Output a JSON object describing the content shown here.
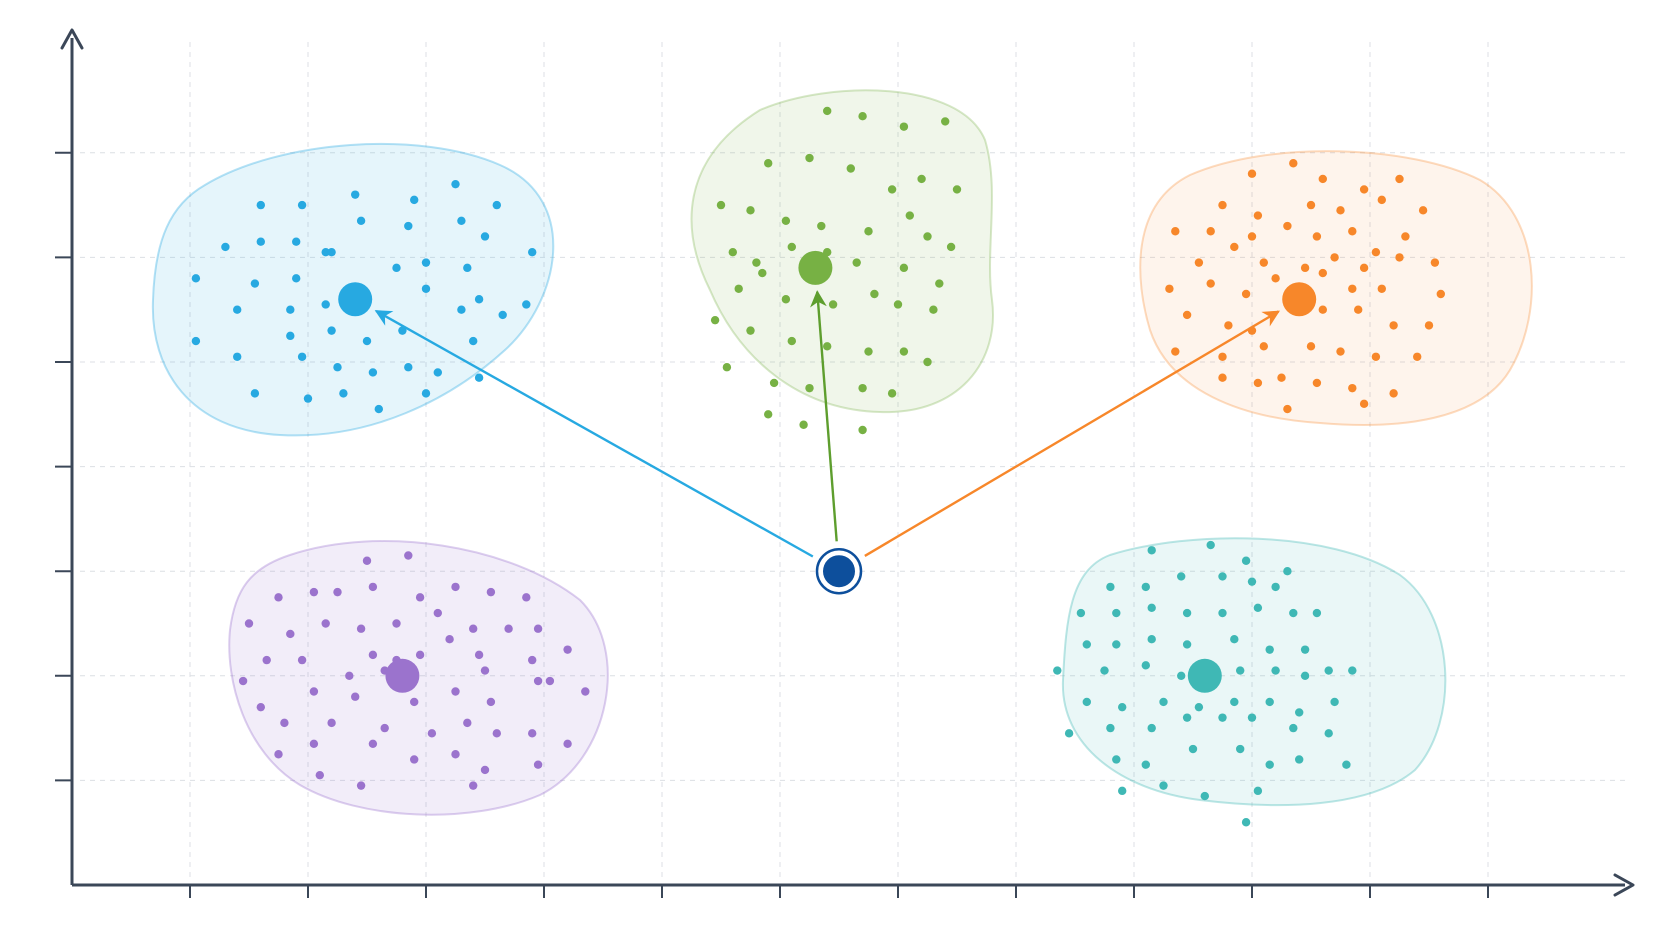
{
  "chart_data": {
    "type": "scatter",
    "title": "",
    "xlabel": "",
    "ylabel": "",
    "xlim": [
      0,
      13
    ],
    "ylim": [
      0,
      8
    ],
    "grid": true,
    "colors": {
      "axis": "#3b4758",
      "grid": "#dcdfe4",
      "query": "#0d4f9c"
    },
    "query_point": {
      "x": 6.5,
      "y": 3.0
    },
    "arrows_to": [
      "blue",
      "green",
      "orange"
    ],
    "clusters": [
      {
        "id": "blue",
        "color": "#27a9e1",
        "centroid": {
          "x": 2.4,
          "y": 5.6
        },
        "points": [
          [
            1.6,
            6.5
          ],
          [
            1.95,
            6.5
          ],
          [
            2.4,
            6.6
          ],
          [
            2.9,
            6.55
          ],
          [
            3.25,
            6.7
          ],
          [
            3.6,
            6.5
          ],
          [
            1.3,
            6.1
          ],
          [
            1.6,
            6.15
          ],
          [
            1.9,
            6.15
          ],
          [
            2.15,
            6.05
          ],
          [
            2.45,
            6.35
          ],
          [
            2.85,
            6.3
          ],
          [
            3.3,
            6.35
          ],
          [
            3.5,
            6.2
          ],
          [
            3.9,
            6.05
          ],
          [
            1.05,
            5.8
          ],
          [
            1.55,
            5.75
          ],
          [
            1.9,
            5.8
          ],
          [
            2.2,
            6.05
          ],
          [
            2.75,
            5.9
          ],
          [
            3.0,
            5.95
          ],
          [
            3.35,
            5.9
          ],
          [
            3.45,
            5.6
          ],
          [
            3.65,
            5.45
          ],
          [
            1.4,
            5.5
          ],
          [
            1.85,
            5.5
          ],
          [
            2.15,
            5.55
          ],
          [
            3.0,
            5.7
          ],
          [
            3.3,
            5.5
          ],
          [
            3.85,
            5.55
          ],
          [
            1.05,
            5.2
          ],
          [
            1.4,
            5.05
          ],
          [
            1.85,
            5.25
          ],
          [
            2.2,
            5.3
          ],
          [
            2.5,
            5.2
          ],
          [
            2.8,
            5.3
          ],
          [
            3.4,
            5.2
          ],
          [
            1.95,
            5.05
          ],
          [
            2.25,
            4.95
          ],
          [
            2.55,
            4.9
          ],
          [
            2.85,
            4.95
          ],
          [
            3.1,
            4.9
          ],
          [
            3.45,
            4.85
          ],
          [
            1.55,
            4.7
          ],
          [
            2.0,
            4.65
          ],
          [
            2.3,
            4.7
          ],
          [
            2.6,
            4.55
          ],
          [
            3.0,
            4.7
          ]
        ]
      },
      {
        "id": "green",
        "color": "#77b144",
        "centroid": {
          "x": 6.3,
          "y": 5.9
        },
        "points": [
          [
            6.4,
            7.4
          ],
          [
            6.7,
            7.35
          ],
          [
            7.05,
            7.25
          ],
          [
            7.4,
            7.3
          ],
          [
            5.9,
            6.9
          ],
          [
            6.25,
            6.95
          ],
          [
            6.6,
            6.85
          ],
          [
            6.95,
            6.65
          ],
          [
            7.2,
            6.75
          ],
          [
            7.5,
            6.65
          ],
          [
            5.5,
            6.5
          ],
          [
            5.75,
            6.45
          ],
          [
            6.05,
            6.35
          ],
          [
            6.35,
            6.3
          ],
          [
            6.75,
            6.25
          ],
          [
            7.1,
            6.4
          ],
          [
            7.25,
            6.2
          ],
          [
            7.45,
            6.1
          ],
          [
            5.6,
            6.05
          ],
          [
            5.8,
            5.95
          ],
          [
            6.1,
            6.1
          ],
          [
            6.4,
            6.05
          ],
          [
            6.65,
            5.95
          ],
          [
            7.05,
            5.9
          ],
          [
            7.35,
            5.75
          ],
          [
            5.65,
            5.7
          ],
          [
            5.85,
            5.85
          ],
          [
            6.05,
            5.6
          ],
          [
            6.45,
            5.55
          ],
          [
            6.8,
            5.65
          ],
          [
            7.0,
            5.55
          ],
          [
            7.3,
            5.5
          ],
          [
            5.45,
            5.4
          ],
          [
            5.75,
            5.3
          ],
          [
            6.1,
            5.2
          ],
          [
            6.4,
            5.15
          ],
          [
            6.75,
            5.1
          ],
          [
            7.05,
            5.1
          ],
          [
            7.25,
            5.0
          ],
          [
            5.55,
            4.95
          ],
          [
            5.95,
            4.8
          ],
          [
            6.25,
            4.75
          ],
          [
            6.7,
            4.75
          ],
          [
            6.95,
            4.7
          ],
          [
            5.9,
            4.5
          ],
          [
            6.2,
            4.4
          ],
          [
            6.7,
            4.35
          ]
        ]
      },
      {
        "id": "orange",
        "color": "#f7872a",
        "centroid": {
          "x": 10.4,
          "y": 5.6
        },
        "points": [
          [
            10.0,
            6.8
          ],
          [
            10.35,
            6.9
          ],
          [
            10.6,
            6.75
          ],
          [
            10.95,
            6.65
          ],
          [
            11.25,
            6.75
          ],
          [
            9.75,
            6.5
          ],
          [
            10.05,
            6.4
          ],
          [
            10.5,
            6.5
          ],
          [
            10.75,
            6.45
          ],
          [
            11.1,
            6.55
          ],
          [
            11.45,
            6.45
          ],
          [
            9.35,
            6.25
          ],
          [
            9.65,
            6.25
          ],
          [
            10.0,
            6.2
          ],
          [
            10.3,
            6.3
          ],
          [
            10.55,
            6.2
          ],
          [
            10.85,
            6.25
          ],
          [
            11.05,
            6.05
          ],
          [
            11.3,
            6.2
          ],
          [
            9.55,
            5.95
          ],
          [
            9.85,
            6.1
          ],
          [
            10.1,
            5.95
          ],
          [
            10.45,
            5.9
          ],
          [
            10.7,
            6.0
          ],
          [
            10.95,
            5.9
          ],
          [
            11.25,
            6.0
          ],
          [
            11.55,
            5.95
          ],
          [
            9.3,
            5.7
          ],
          [
            9.65,
            5.75
          ],
          [
            9.95,
            5.65
          ],
          [
            10.2,
            5.8
          ],
          [
            10.6,
            5.85
          ],
          [
            10.85,
            5.7
          ],
          [
            11.1,
            5.7
          ],
          [
            11.6,
            5.65
          ],
          [
            9.45,
            5.45
          ],
          [
            9.8,
            5.35
          ],
          [
            10.0,
            5.3
          ],
          [
            10.6,
            5.5
          ],
          [
            10.9,
            5.5
          ],
          [
            11.2,
            5.35
          ],
          [
            11.5,
            5.35
          ],
          [
            9.35,
            5.1
          ],
          [
            9.75,
            5.05
          ],
          [
            10.1,
            5.15
          ],
          [
            10.5,
            5.15
          ],
          [
            10.75,
            5.1
          ],
          [
            11.05,
            5.05
          ],
          [
            11.4,
            5.05
          ],
          [
            9.75,
            4.85
          ],
          [
            10.05,
            4.8
          ],
          [
            10.25,
            4.85
          ],
          [
            10.55,
            4.8
          ],
          [
            10.85,
            4.75
          ],
          [
            11.2,
            4.7
          ],
          [
            10.3,
            4.55
          ],
          [
            10.95,
            4.6
          ]
        ]
      },
      {
        "id": "purple",
        "color": "#9b73cd",
        "centroid": {
          "x": 2.8,
          "y": 2.0
        },
        "points": [
          [
            2.5,
            3.1
          ],
          [
            2.85,
            3.15
          ],
          [
            2.25,
            2.8
          ],
          [
            2.55,
            2.85
          ],
          [
            2.95,
            2.75
          ],
          [
            3.25,
            2.85
          ],
          [
            3.55,
            2.8
          ],
          [
            3.85,
            2.75
          ],
          [
            1.75,
            2.75
          ],
          [
            2.05,
            2.8
          ],
          [
            2.45,
            2.45
          ],
          [
            2.75,
            2.5
          ],
          [
            3.1,
            2.6
          ],
          [
            3.4,
            2.45
          ],
          [
            3.7,
            2.45
          ],
          [
            3.95,
            2.45
          ],
          [
            1.5,
            2.5
          ],
          [
            1.85,
            2.4
          ],
          [
            2.15,
            2.5
          ],
          [
            2.55,
            2.2
          ],
          [
            2.75,
            2.15
          ],
          [
            3.2,
            2.35
          ],
          [
            3.45,
            2.2
          ],
          [
            3.9,
            2.15
          ],
          [
            4.2,
            2.25
          ],
          [
            1.65,
            2.15
          ],
          [
            1.95,
            2.15
          ],
          [
            2.35,
            2.0
          ],
          [
            2.65,
            2.05
          ],
          [
            2.95,
            2.2
          ],
          [
            3.5,
            2.05
          ],
          [
            3.95,
            1.95
          ],
          [
            1.45,
            1.95
          ],
          [
            2.05,
            1.85
          ],
          [
            2.4,
            1.8
          ],
          [
            2.9,
            1.75
          ],
          [
            3.25,
            1.85
          ],
          [
            3.55,
            1.75
          ],
          [
            4.05,
            1.95
          ],
          [
            4.35,
            1.85
          ],
          [
            1.6,
            1.7
          ],
          [
            1.8,
            1.55
          ],
          [
            2.2,
            1.55
          ],
          [
            2.65,
            1.5
          ],
          [
            3.05,
            1.45
          ],
          [
            3.35,
            1.55
          ],
          [
            3.6,
            1.45
          ],
          [
            3.9,
            1.45
          ],
          [
            4.2,
            1.35
          ],
          [
            1.75,
            1.25
          ],
          [
            2.05,
            1.35
          ],
          [
            2.55,
            1.35
          ],
          [
            2.9,
            1.2
          ],
          [
            3.25,
            1.25
          ],
          [
            3.5,
            1.1
          ],
          [
            3.95,
            1.15
          ],
          [
            2.1,
            1.05
          ],
          [
            2.45,
            0.95
          ],
          [
            3.4,
            0.95
          ]
        ]
      },
      {
        "id": "teal",
        "color": "#3fb8b5",
        "centroid": {
          "x": 9.6,
          "y": 2.0
        },
        "points": [
          [
            9.15,
            3.2
          ],
          [
            9.65,
            3.25
          ],
          [
            9.95,
            3.1
          ],
          [
            10.3,
            3.0
          ],
          [
            8.8,
            2.85
          ],
          [
            9.1,
            2.85
          ],
          [
            9.4,
            2.95
          ],
          [
            9.75,
            2.95
          ],
          [
            10.0,
            2.9
          ],
          [
            10.2,
            2.85
          ],
          [
            8.55,
            2.6
          ],
          [
            8.85,
            2.6
          ],
          [
            9.15,
            2.65
          ],
          [
            9.45,
            2.6
          ],
          [
            9.75,
            2.6
          ],
          [
            10.05,
            2.65
          ],
          [
            10.35,
            2.6
          ],
          [
            10.55,
            2.6
          ],
          [
            8.6,
            2.3
          ],
          [
            8.85,
            2.3
          ],
          [
            9.15,
            2.35
          ],
          [
            9.45,
            2.3
          ],
          [
            9.85,
            2.35
          ],
          [
            10.15,
            2.25
          ],
          [
            10.45,
            2.25
          ],
          [
            10.65,
            2.05
          ],
          [
            8.35,
            2.05
          ],
          [
            8.75,
            2.05
          ],
          [
            9.1,
            2.1
          ],
          [
            9.4,
            2.0
          ],
          [
            9.9,
            2.05
          ],
          [
            10.2,
            2.05
          ],
          [
            10.45,
            2.0
          ],
          [
            10.85,
            2.05
          ],
          [
            8.6,
            1.75
          ],
          [
            8.9,
            1.7
          ],
          [
            9.25,
            1.75
          ],
          [
            9.55,
            1.7
          ],
          [
            9.85,
            1.75
          ],
          [
            10.15,
            1.75
          ],
          [
            10.4,
            1.65
          ],
          [
            10.7,
            1.75
          ],
          [
            8.45,
            1.45
          ],
          [
            8.8,
            1.5
          ],
          [
            9.15,
            1.5
          ],
          [
            9.45,
            1.6
          ],
          [
            9.75,
            1.6
          ],
          [
            10.0,
            1.6
          ],
          [
            10.35,
            1.5
          ],
          [
            10.65,
            1.45
          ],
          [
            8.85,
            1.2
          ],
          [
            9.1,
            1.15
          ],
          [
            9.5,
            1.3
          ],
          [
            9.9,
            1.3
          ],
          [
            10.15,
            1.15
          ],
          [
            10.4,
            1.2
          ],
          [
            10.8,
            1.15
          ],
          [
            8.9,
            0.9
          ],
          [
            9.25,
            0.95
          ],
          [
            9.6,
            0.85
          ],
          [
            10.05,
            0.9
          ],
          [
            9.95,
            0.6
          ]
        ]
      }
    ]
  }
}
